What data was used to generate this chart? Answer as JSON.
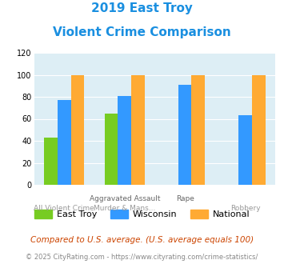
{
  "title_line1": "2019 East Troy",
  "title_line2": "Violent Crime Comparison",
  "cat_labels_top": [
    "",
    "Aggravated Assault",
    "Rape",
    ""
  ],
  "cat_labels_bot": [
    "All Violent Crime",
    "Murder & Mans...",
    "",
    "Robbery"
  ],
  "series": {
    "East Troy": [
      43,
      65,
      null,
      null
    ],
    "Wisconsin": [
      77,
      81,
      91,
      63
    ],
    "National": [
      100,
      100,
      100,
      100
    ]
  },
  "colors": {
    "East Troy": "#77cc22",
    "Wisconsin": "#3399ff",
    "National": "#ffaa33"
  },
  "ylim": [
    0,
    120
  ],
  "yticks": [
    0,
    20,
    40,
    60,
    80,
    100,
    120
  ],
  "footnote1": "Compared to U.S. average. (U.S. average equals 100)",
  "footnote2": "© 2025 CityRating.com - https://www.cityrating.com/crime-statistics/",
  "title_color": "#1a8fe0",
  "footnote1_color": "#cc4400",
  "footnote2_color": "#888888",
  "bg_color": "#ddeef5",
  "fig_bg": "#ffffff",
  "bar_width": 0.22
}
